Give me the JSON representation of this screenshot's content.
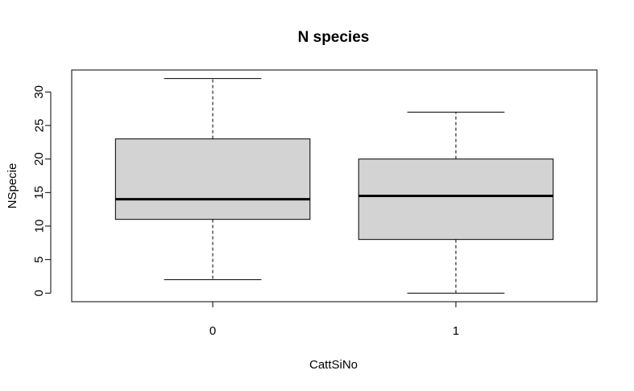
{
  "chart_data": {
    "type": "boxplot",
    "title": "N species",
    "xlabel": "CattSiNo",
    "ylabel": "NSpecie",
    "categories": [
      "0",
      "1"
    ],
    "boxes": [
      {
        "category": "0",
        "min": 2,
        "q1": 11,
        "median": 14,
        "q3": 23,
        "max": 32
      },
      {
        "category": "1",
        "min": 0,
        "q1": 8,
        "median": 14.5,
        "q3": 20,
        "max": 27
      }
    ],
    "y_ticks": [
      0,
      5,
      10,
      15,
      20,
      25,
      30
    ],
    "ylim": [
      -1.28,
      33.28
    ],
    "box_fill": "#d3d3d3",
    "line_color": "#000000"
  }
}
